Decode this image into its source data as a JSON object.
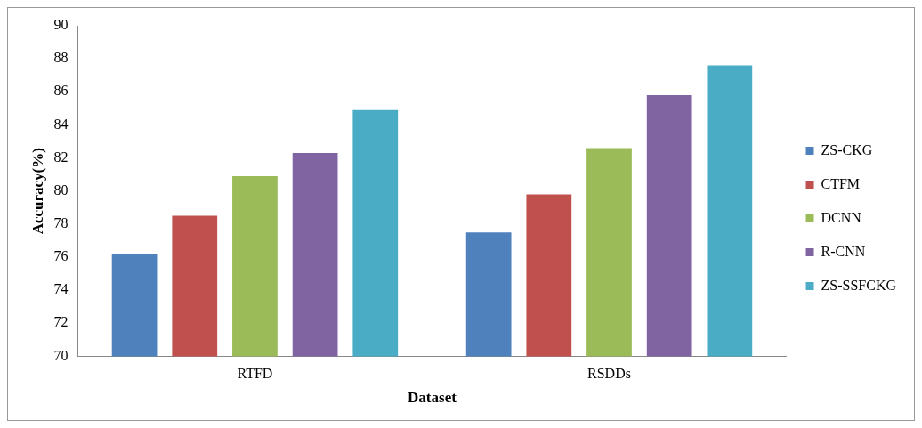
{
  "chart_data": {
    "type": "bar",
    "xlabel": "Dataset",
    "ylabel": "Accuracy(%)",
    "categories": [
      "RTFD",
      "RSDDs"
    ],
    "series": [
      {
        "name": "ZS-CKG",
        "color": "#4f81bd",
        "values": [
          76.2,
          77.5
        ]
      },
      {
        "name": "CTFM",
        "color": "#c0504d",
        "values": [
          78.5,
          79.8
        ]
      },
      {
        "name": "DCNN",
        "color": "#9bbb59",
        "values": [
          80.9,
          82.6
        ]
      },
      {
        "name": "R-CNN",
        "color": "#8064a2",
        "values": [
          82.3,
          85.8
        ]
      },
      {
        "name": "ZS-SSFCKG",
        "color": "#4bacc6",
        "values": [
          84.9,
          87.6
        ]
      }
    ],
    "ylim": [
      70,
      90
    ],
    "yticks": [
      70,
      72,
      74,
      76,
      78,
      80,
      82,
      84,
      86,
      88,
      90
    ],
    "grid": false,
    "legend": "right"
  }
}
